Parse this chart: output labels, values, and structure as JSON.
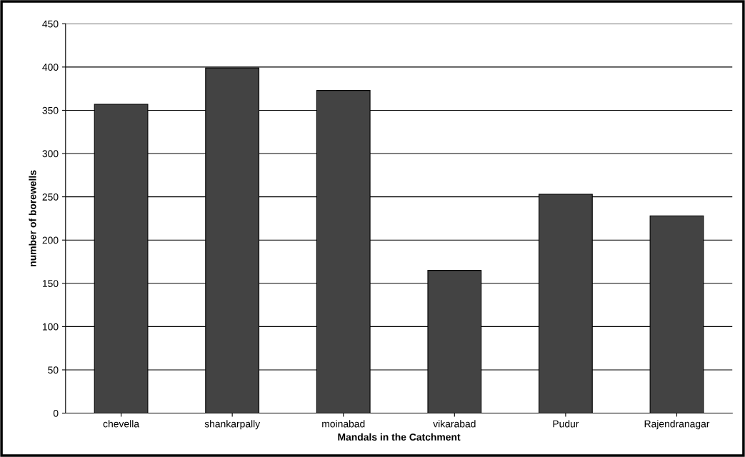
{
  "chart_data": {
    "type": "bar",
    "xlabel": "Mandals in the Catchment",
    "ylabel": "number of borewells",
    "categories": [
      "chevella",
      "shankarpally",
      "moinabad",
      "vikarabad",
      "Pudur",
      "Rajendranagar"
    ],
    "values": [
      357,
      399,
      373,
      165,
      253,
      228
    ],
    "color": "#434343",
    "ylim": [
      0,
      450
    ],
    "yticks": [
      0,
      50,
      100,
      150,
      200,
      250,
      300,
      350,
      400,
      450
    ],
    "grid": "y",
    "legend": false
  }
}
